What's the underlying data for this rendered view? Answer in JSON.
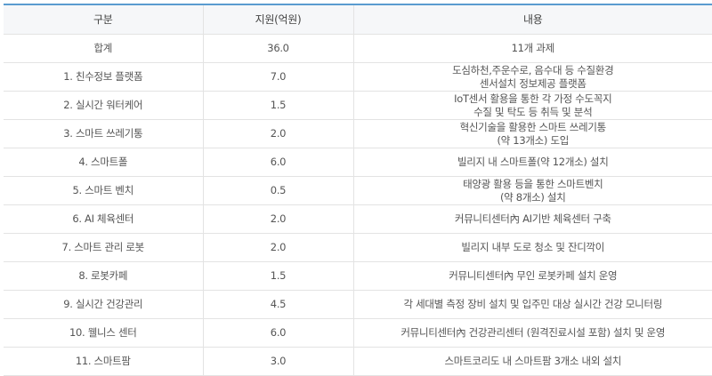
{
  "table": {
    "headers": [
      "구분",
      "지원(억원)",
      "내용"
    ],
    "rows": [
      {
        "category": "합계",
        "amount": "36.0",
        "content": "11개 과제"
      },
      {
        "category": "1. 친수정보 플랫폼",
        "amount": "7.0",
        "content": "도심하천,주운수로, 음수대 등 수질환경\n센서설치 정보제공 플랫폼"
      },
      {
        "category": "2. 실시간 워터케어",
        "amount": "1.5",
        "content": "IoT센서 활용을 통한 각 가정 수도꼭지\n수질 및 탁도 등 취득 및 분석"
      },
      {
        "category": "3. 스마트 쓰레기통",
        "amount": "2.0",
        "content": "혁신기술을 활용한 스마트 쓰레기통\n(약 13개소) 도입"
      },
      {
        "category": "4. 스마트폴",
        "amount": "6.0",
        "content": "빌리지 내 스마트폴(약 12개소) 설치"
      },
      {
        "category": "5. 스마트 벤치",
        "amount": "0.5",
        "content": "태양광 활용 등을 통한 스마트벤치\n(약 8개소) 설치"
      },
      {
        "category": "6. AI 체육센터",
        "amount": "2.0",
        "content": "커뮤니티센터內 AI기반 체육센터 구축"
      },
      {
        "category": "7. 스마트 관리 로봇",
        "amount": "2.0",
        "content": "빌리지 내부 도로 청소 및 잔디깍이"
      },
      {
        "category": "8. 로봇카페",
        "amount": "1.5",
        "content": "커뮤니티센터內 무인 로봇카페 설치 운영"
      },
      {
        "category": "9. 실시간 건강관리",
        "amount": "4.5",
        "content": "각 세대별 측정 장비 설치 및 입주민 대상 실시간 건강 모니터링"
      },
      {
        "category": "10. 웰니스 센터",
        "amount": "6.0",
        "content": "커뮤니티센터內 건강관리센터 (원격진료시설 포함) 설치 및 운영"
      },
      {
        "category": "11. 스마트팜",
        "amount": "3.0",
        "content": "스마트코리도 내 스마트팜 3개소 내외 설치"
      }
    ]
  }
}
